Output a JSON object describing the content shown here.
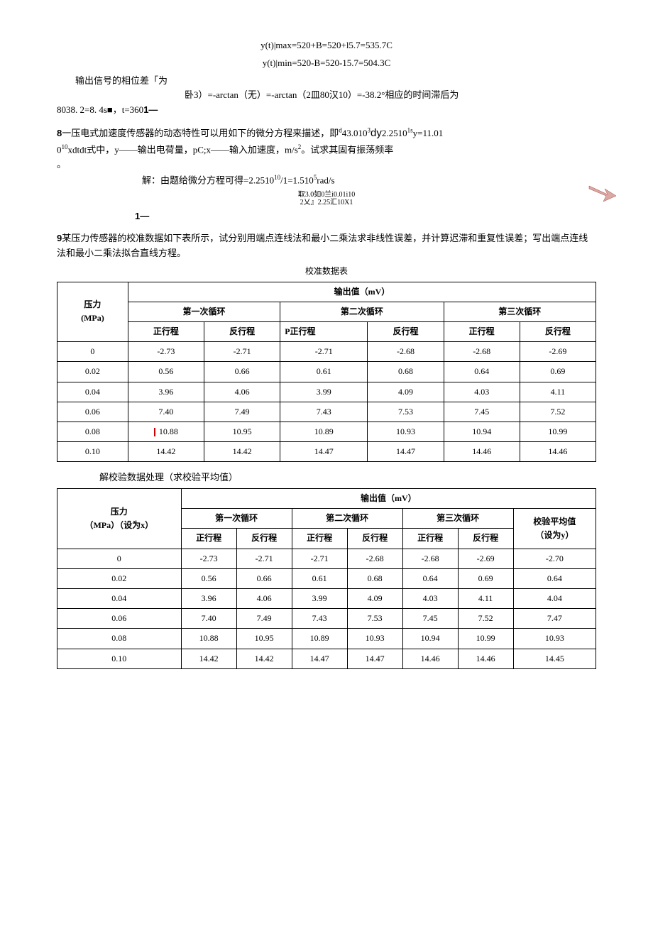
{
  "eq1": "y(t)|max=520+B=520+l5.7=535.7C",
  "eq2": "y(t)|min=520-B=520-15.7=504.3C",
  "line1": "输出信号的相位差「为",
  "eq3": "卧3）=-arctan（无）=-arctan（2皿80汉10）=-38.2°相应的时间滞后为",
  "line2a": "8038. 2=8. 4s■，t=360",
  "line2b": "1—",
  "prob8_num": "8",
  "prob8_a": "一压电式加速度传感器的动态特性可以用如下的微分方程来描述，即",
  "prob8_dy": "dy",
  "prob8_b": "43.010",
  "prob8_c": "2.2510",
  "prob8_d": "y=11.01",
  "prob8_e": "0",
  "prob8_f": "xdtdt式中，y——输出电荷量，pC;x——输入加速度，m/s",
  "prob8_g": "。试求其固有振荡频率",
  "dot": "。",
  "sol8_a": "解：由题给微分方程可得=2.2510",
  "sol8_b": "/1=1.510",
  "sol8_c": "rad/s",
  "sol8_frac_top": "取3.0如0兰i0.01i10",
  "sol8_frac_bot": "2乂』2.25汇10X1",
  "sol8_tail": "1—",
  "prob9_num": "9",
  "prob9_text": "某压力传感器的校准数据如下表所示，试分别用端点连线法和最小二乘法求非线性误差，并计算迟滞和重复性误差；写出端点连线法和最小二乘法拟合直线方程。",
  "table1_title": "校准数据表",
  "table1": {
    "head_pressure": "压力\n(MPa)",
    "head_output": "输出值（mV）",
    "head_cycle1": "第一次循环",
    "head_cycle2": "第二次循环",
    "head_cycle3": "第三次循环",
    "head_fwd": "正行程",
    "head_fwdP": "P正行程",
    "head_rev": "反行程",
    "rows": [
      {
        "p": "0",
        "c1f": "-2.73",
        "c1r": "-2.71",
        "c2f": "-2.71",
        "c2r": "-2.68",
        "c3f": "-2.68",
        "c3r": "-2.69"
      },
      {
        "p": "0.02",
        "c1f": "0.56",
        "c1r": "0.66",
        "c2f": "0.61",
        "c2r": "0.68",
        "c3f": "0.64",
        "c3r": "0.69"
      },
      {
        "p": "0.04",
        "c1f": "3.96",
        "c1r": "4.06",
        "c2f": "3.99",
        "c2r": "4.09",
        "c3f": "4.03",
        "c3r": "4.11"
      },
      {
        "p": "0.06",
        "c1f": "7.40",
        "c1r": "7.49",
        "c2f": "7.43",
        "c2r": "7.53",
        "c3f": "7.45",
        "c3r": "7.52"
      },
      {
        "p": "0.08",
        "c1f": "10.88",
        "c1r": "10.95",
        "c2f": "10.89",
        "c2r": "10.93",
        "c3f": "10.94",
        "c3r": "10.99",
        "mark": true
      },
      {
        "p": "0.10",
        "c1f": "14.42",
        "c1r": "14.42",
        "c2f": "14.47",
        "c2r": "14.47",
        "c3f": "14.46",
        "c3r": "14.46"
      }
    ]
  },
  "sol9_text": "解校验数据处理（求校验平均值）",
  "table2": {
    "head_pressure": "压力\n（MPa）（设为x）",
    "head_output": "输出值（mV）",
    "head_cycle1": "第一次循环",
    "head_cycle2": "第二次循环",
    "head_cycle3": "第三次循环",
    "head_fwd": "正行程",
    "head_rev": "反行程",
    "head_avg": "校验平均值\n（设为y）",
    "rows": [
      {
        "p": "0",
        "c1f": "-2.73",
        "c1r": "-2.71",
        "c2f": "-2.71",
        "c2r": "-2.68",
        "c3f": "-2.68",
        "c3r": "-2.69",
        "avg": "-2.70"
      },
      {
        "p": "0.02",
        "c1f": "0.56",
        "c1r": "0.66",
        "c2f": "0.61",
        "c2r": "0.68",
        "c3f": "0.64",
        "c3r": "0.69",
        "avg": "0.64"
      },
      {
        "p": "0.04",
        "c1f": "3.96",
        "c1r": "4.06",
        "c2f": "3.99",
        "c2r": "4.09",
        "c3f": "4.03",
        "c3r": "4.11",
        "avg": "4.04"
      },
      {
        "p": "0.06",
        "c1f": "7.40",
        "c1r": "7.49",
        "c2f": "7.43",
        "c2r": "7.53",
        "c3f": "7.45",
        "c3r": "7.52",
        "avg": "7.47"
      },
      {
        "p": "0.08",
        "c1f": "10.88",
        "c1r": "10.95",
        "c2f": "10.89",
        "c2r": "10.93",
        "c3f": "10.94",
        "c3r": "10.99",
        "avg": "10.93"
      },
      {
        "p": "0.10",
        "c1f": "14.42",
        "c1r": "14.42",
        "c2f": "14.47",
        "c2r": "14.47",
        "c3f": "14.46",
        "c3r": "14.46",
        "avg": "14.45"
      }
    ]
  },
  "colors": {
    "text": "#000000",
    "border": "#000000",
    "arrow_fill": "#d9a9a3",
    "arrow_stroke": "#b04040",
    "red": "#cc0000"
  }
}
